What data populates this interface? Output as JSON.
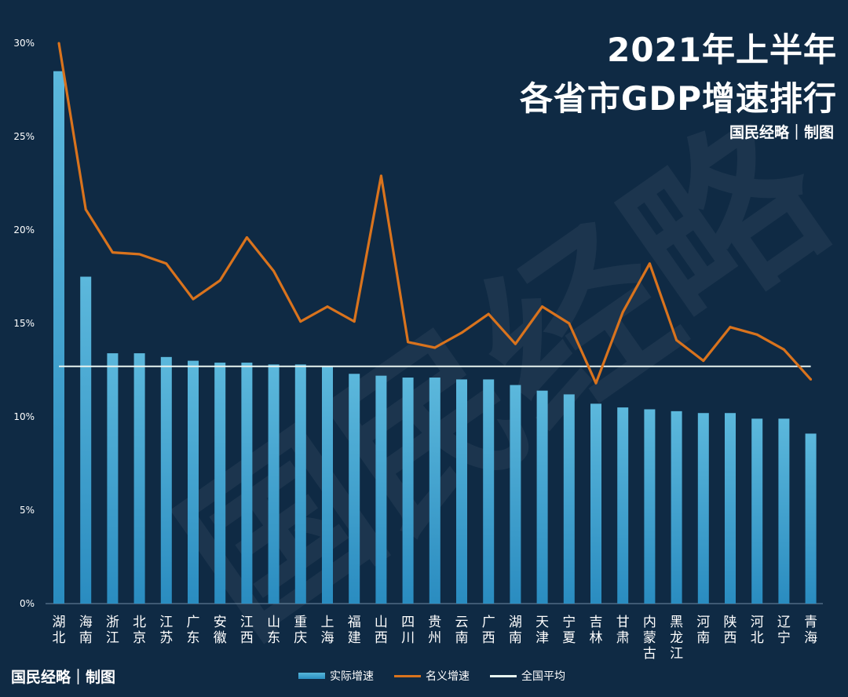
{
  "header": {
    "title_line1": "2021年上半年",
    "title_line2": "各省市GDP增速排行",
    "credit": "国民经略｜制图"
  },
  "footer": {
    "credit": "国民经略｜制图"
  },
  "watermark": "国民经略",
  "legend": {
    "actual": "实际增速",
    "nominal": "名义增速",
    "national": "全国平均"
  },
  "colors": {
    "background": "#0f2a44",
    "bar": "#3a9fd0",
    "nominal_line": "#d9731d",
    "national_line": "#e8f4f0",
    "axis_text": "#ffffff"
  },
  "chart_data": {
    "type": "bar",
    "categories": [
      "湖北",
      "海南",
      "浙江",
      "北京",
      "江苏",
      "广东",
      "安徽",
      "江西",
      "山东",
      "重庆",
      "上海",
      "福建",
      "山西",
      "四川",
      "贵州",
      "云南",
      "广西",
      "湖南",
      "天津",
      "宁夏",
      "吉林",
      "甘肃",
      "内蒙古",
      "黑龙江",
      "河南",
      "陕西",
      "河北",
      "辽宁",
      "青海"
    ],
    "series": [
      {
        "name": "实际增速",
        "type": "bar",
        "values": [
          28.5,
          17.5,
          13.4,
          13.4,
          13.2,
          13.0,
          12.9,
          12.9,
          12.8,
          12.8,
          12.7,
          12.3,
          12.2,
          12.1,
          12.1,
          12.0,
          12.0,
          11.7,
          11.4,
          11.2,
          10.7,
          10.5,
          10.4,
          10.3,
          10.2,
          10.2,
          9.9,
          9.9,
          9.1
        ]
      },
      {
        "name": "名义增速",
        "type": "line",
        "values": [
          30.0,
          21.1,
          18.8,
          18.7,
          18.2,
          16.3,
          17.3,
          19.6,
          17.8,
          15.1,
          15.9,
          15.1,
          22.9,
          14.0,
          13.7,
          14.5,
          15.5,
          13.9,
          15.9,
          15.0,
          11.8,
          15.6,
          18.2,
          14.1,
          13.0,
          14.8,
          14.4,
          13.6,
          12.0
        ]
      },
      {
        "name": "全国平均",
        "type": "reference",
        "value": 12.7
      }
    ],
    "yticks": [
      "0%",
      "5%",
      "10%",
      "15%",
      "20%",
      "25%",
      "30%"
    ],
    "ylim": [
      0,
      30
    ],
    "grid": false,
    "legend_position": "bottom"
  }
}
